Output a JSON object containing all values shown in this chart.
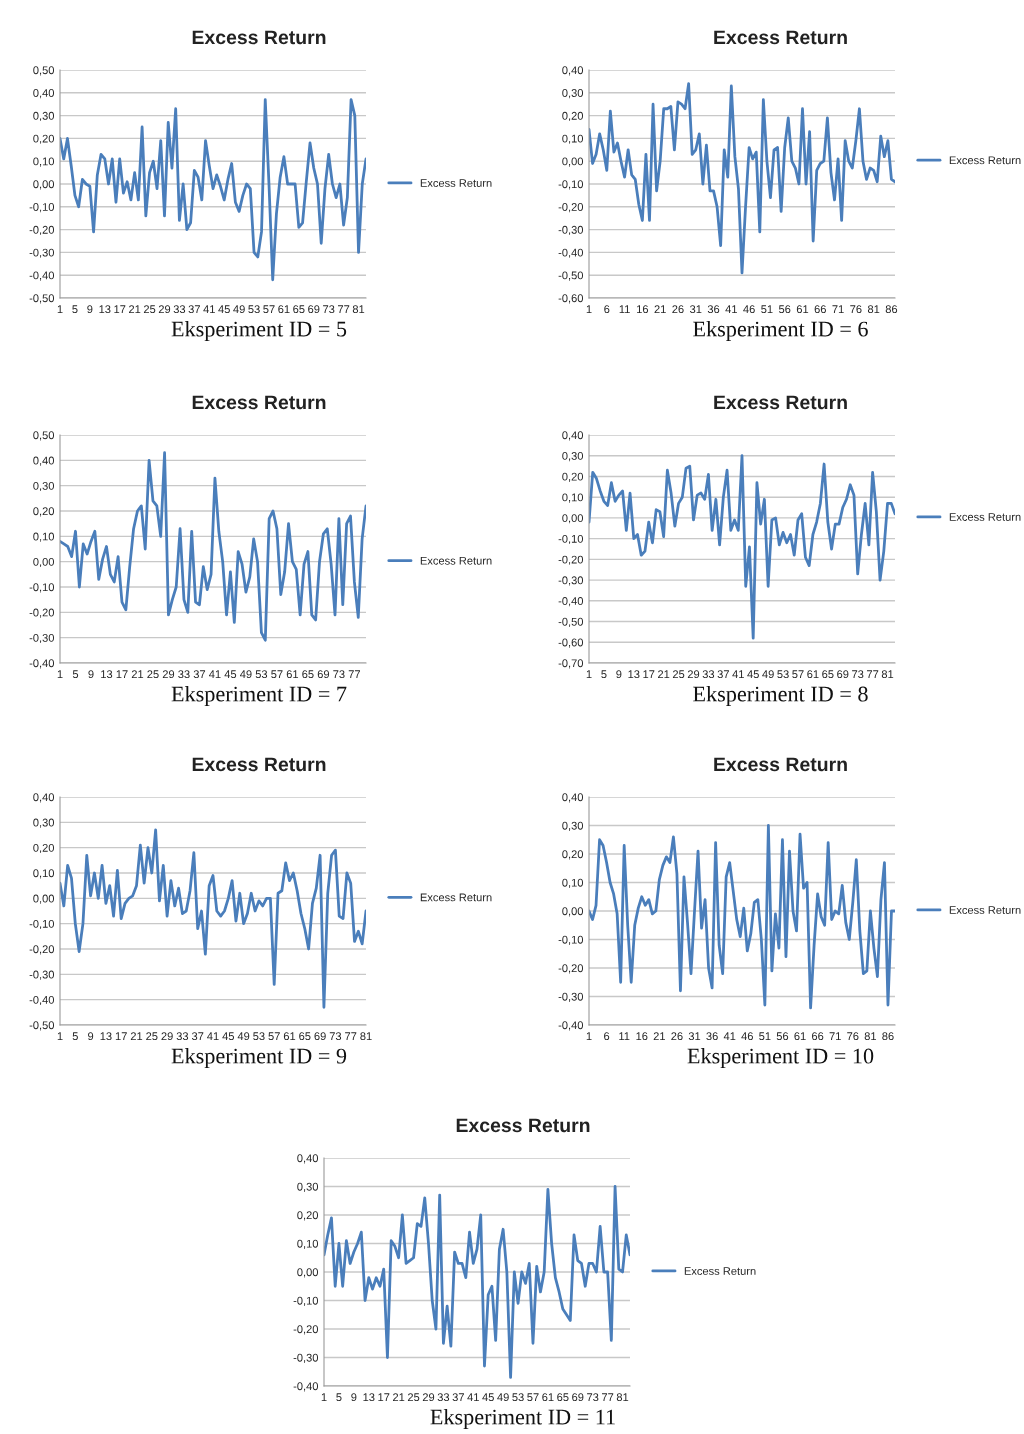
{
  "chart_data": [
    {
      "type": "line",
      "title": "Excess Return",
      "annotations": [
        "Eksperiment ID = 5"
      ],
      "grid": "y",
      "legend": "right",
      "categories": [
        "1",
        null,
        null,
        null,
        "5",
        null,
        null,
        null,
        "9",
        null,
        null,
        null,
        "13",
        null,
        null,
        null,
        "17",
        null,
        null,
        null,
        "21",
        null,
        null,
        null,
        "25",
        null,
        null,
        null,
        "29",
        null,
        null,
        null,
        "33",
        null,
        null,
        null,
        "37",
        null,
        null,
        null,
        "41",
        null,
        null,
        null,
        "45",
        null,
        null,
        null,
        "49",
        null,
        null,
        null,
        "53",
        null,
        null,
        null,
        "57",
        null,
        null,
        null,
        "61",
        null,
        null,
        null,
        "65",
        null,
        null,
        null,
        "69",
        null,
        null,
        null,
        "73",
        null,
        null,
        null,
        "77",
        null,
        null,
        null,
        "81",
        null,
        null
      ],
      "ylim": [
        -0.5,
        0.5
      ],
      "yticks": [
        {
          "value": -0.5,
          "label": "-0,50"
        },
        {
          "value": -0.4,
          "label": "-0,40"
        },
        {
          "value": -0.3,
          "label": "-0,30"
        },
        {
          "value": -0.2,
          "label": "-0,20"
        },
        {
          "value": -0.1,
          "label": "-0,10"
        },
        {
          "value": 0,
          "label": "0,00"
        },
        {
          "value": 0.1,
          "label": "0,10"
        },
        {
          "value": 0.2,
          "label": "0,20"
        },
        {
          "value": 0.3,
          "label": "0,30"
        },
        {
          "value": 0.4,
          "label": "0,40"
        },
        {
          "value": 0.5,
          "label": "0,50"
        }
      ],
      "series": [
        {
          "name": "Excess Return",
          "color": "#4a7ebb",
          "values": [
            0.2,
            0.11,
            0.2,
            0.08,
            -0.05,
            -0.1,
            0.02,
            0.0,
            -0.01,
            -0.21,
            0.04,
            0.13,
            0.11,
            0.0,
            0.11,
            -0.08,
            0.11,
            -0.04,
            0.01,
            -0.07,
            0.05,
            -0.07,
            0.25,
            -0.14,
            0.05,
            0.1,
            -0.02,
            0.19,
            -0.14,
            0.27,
            0.07,
            0.33,
            -0.16,
            0.0,
            -0.2,
            -0.17,
            0.06,
            0.03,
            -0.07,
            0.19,
            0.08,
            -0.02,
            0.04,
            -0.01,
            -0.07,
            0.02,
            0.09,
            -0.08,
            -0.12,
            -0.05,
            0.0,
            -0.02,
            -0.3,
            -0.32,
            -0.21,
            0.37,
            0.0,
            -0.42,
            -0.13,
            0.03,
            0.12,
            0.0,
            0.0,
            0.0,
            -0.19,
            -0.17,
            0.01,
            0.18,
            0.07,
            0.0,
            -0.26,
            -0.02,
            0.13,
            0.0,
            -0.06,
            0.0,
            -0.18,
            -0.06,
            0.37,
            0.3,
            -0.3,
            0.0,
            0.11
          ]
        }
      ]
    },
    {
      "type": "line",
      "title": "Excess Return",
      "annotations": [
        "Eksperiment ID = 6"
      ],
      "grid": "y",
      "legend": "right",
      "categories": [
        "1",
        null,
        null,
        null,
        null,
        "6",
        null,
        null,
        null,
        null,
        "11",
        null,
        null,
        null,
        null,
        "16",
        null,
        null,
        null,
        null,
        "21",
        null,
        null,
        null,
        null,
        "26",
        null,
        null,
        null,
        null,
        "31",
        null,
        null,
        null,
        null,
        "36",
        null,
        null,
        null,
        null,
        "41",
        null,
        null,
        null,
        null,
        "46",
        null,
        null,
        null,
        null,
        "51",
        null,
        null,
        null,
        null,
        "56",
        null,
        null,
        null,
        null,
        "61",
        null,
        null,
        null,
        null,
        "66",
        null,
        null,
        null,
        null,
        "71",
        null,
        null,
        null,
        null,
        "76",
        null,
        null,
        null,
        null,
        "81",
        null,
        null,
        null,
        null,
        "86",
        null
      ],
      "ylim": [
        -0.6,
        0.4
      ],
      "yticks": [
        {
          "value": -0.6,
          "label": "-0,60"
        },
        {
          "value": -0.5,
          "label": "-0,50"
        },
        {
          "value": -0.4,
          "label": "-0,40"
        },
        {
          "value": -0.3,
          "label": "-0,30"
        },
        {
          "value": -0.2,
          "label": "-0,20"
        },
        {
          "value": -0.1,
          "label": "-0,10"
        },
        {
          "value": 0,
          "label": "0,00"
        },
        {
          "value": 0.1,
          "label": "0,10"
        },
        {
          "value": 0.2,
          "label": "0,20"
        },
        {
          "value": 0.3,
          "label": "0,30"
        },
        {
          "value": 0.4,
          "label": "0,40"
        }
      ],
      "series": [
        {
          "name": "Excess Return",
          "color": "#4a7ebb",
          "values": [
            0.14,
            -0.01,
            0.03,
            0.12,
            0.05,
            -0.04,
            0.22,
            0.04,
            0.08,
            0.0,
            -0.07,
            0.05,
            -0.06,
            -0.08,
            -0.19,
            -0.26,
            0.03,
            -0.26,
            0.25,
            -0.13,
            0.0,
            0.23,
            0.23,
            0.24,
            0.05,
            0.26,
            0.25,
            0.23,
            0.34,
            0.03,
            0.05,
            0.12,
            -0.1,
            0.07,
            -0.13,
            -0.13,
            -0.2,
            -0.37,
            0.05,
            -0.07,
            0.33,
            0.02,
            -0.12,
            -0.49,
            -0.2,
            0.06,
            0.01,
            0.04,
            -0.31,
            0.27,
            0.0,
            -0.16,
            0.05,
            0.06,
            -0.22,
            0.06,
            0.19,
            0.0,
            -0.03,
            -0.1,
            0.23,
            -0.1,
            0.13,
            -0.35,
            -0.04,
            -0.01,
            0.0,
            0.19,
            -0.05,
            -0.17,
            0.01,
            -0.26,
            0.09,
            0.0,
            -0.03,
            0.09,
            0.23,
            0.0,
            -0.08,
            -0.03,
            -0.04,
            -0.09,
            0.11,
            0.02,
            0.09,
            -0.08,
            -0.09
          ]
        }
      ]
    },
    {
      "type": "line",
      "title": "Excess Return",
      "annotations": [
        "Eksperiment ID = 7"
      ],
      "grid": "y",
      "legend": "right",
      "categories": [
        "1",
        null,
        null,
        null,
        "5",
        null,
        null,
        null,
        "9",
        null,
        null,
        null,
        "13",
        null,
        null,
        null,
        "17",
        null,
        null,
        null,
        "21",
        null,
        null,
        null,
        "25",
        null,
        null,
        null,
        "29",
        null,
        null,
        null,
        "33",
        null,
        null,
        null,
        "37",
        null,
        null,
        null,
        "41",
        null,
        null,
        null,
        "45",
        null,
        null,
        null,
        "49",
        null,
        null,
        null,
        "53",
        null,
        null,
        null,
        "57",
        null,
        null,
        null,
        "61",
        null,
        null,
        null,
        "65",
        null,
        null,
        null,
        "69",
        null,
        null,
        null,
        "73",
        null,
        null,
        null,
        "77",
        null,
        null,
        null
      ],
      "ylim": [
        -0.4,
        0.5
      ],
      "yticks": [
        {
          "value": -0.4,
          "label": "-0,40"
        },
        {
          "value": -0.3,
          "label": "-0,30"
        },
        {
          "value": -0.2,
          "label": "-0,20"
        },
        {
          "value": -0.1,
          "label": "-0,10"
        },
        {
          "value": 0,
          "label": "0,00"
        },
        {
          "value": 0.1,
          "label": "0,10"
        },
        {
          "value": 0.2,
          "label": "0,20"
        },
        {
          "value": 0.3,
          "label": "0,30"
        },
        {
          "value": 0.4,
          "label": "0,40"
        },
        {
          "value": 0.5,
          "label": "0,50"
        }
      ],
      "series": [
        {
          "name": "Excess Return",
          "color": "#4a7ebb",
          "values": [
            0.08,
            0.07,
            0.06,
            0.02,
            0.12,
            -0.1,
            0.07,
            0.03,
            0.08,
            0.12,
            -0.07,
            0.01,
            0.06,
            -0.05,
            -0.08,
            0.02,
            -0.16,
            -0.19,
            -0.02,
            0.13,
            0.2,
            0.22,
            0.05,
            0.4,
            0.24,
            0.22,
            0.1,
            0.43,
            -0.21,
            -0.15,
            -0.1,
            0.13,
            -0.15,
            -0.2,
            0.12,
            -0.16,
            -0.17,
            -0.02,
            -0.11,
            -0.05,
            0.33,
            0.12,
            0.0,
            -0.21,
            -0.04,
            -0.24,
            0.04,
            -0.01,
            -0.12,
            -0.06,
            0.09,
            0.0,
            -0.28,
            -0.31,
            0.17,
            0.2,
            0.13,
            -0.13,
            -0.04,
            0.15,
            0.0,
            -0.03,
            -0.21,
            -0.01,
            0.04,
            -0.21,
            -0.23,
            0.0,
            0.11,
            0.13,
            -0.01,
            -0.21,
            0.17,
            -0.17,
            0.15,
            0.18,
            -0.08,
            -0.22,
            0.09,
            0.22
          ]
        }
      ]
    },
    {
      "type": "line",
      "title": "Excess Return",
      "annotations": [
        "Eksperiment ID = 8"
      ],
      "grid": "y",
      "legend": "right",
      "categories": [
        "1",
        null,
        null,
        null,
        "5",
        null,
        null,
        null,
        "9",
        null,
        null,
        null,
        "13",
        null,
        null,
        null,
        "17",
        null,
        null,
        null,
        "21",
        null,
        null,
        null,
        "25",
        null,
        null,
        null,
        "29",
        null,
        null,
        null,
        "33",
        null,
        null,
        null,
        "37",
        null,
        null,
        null,
        "41",
        null,
        null,
        null,
        "45",
        null,
        null,
        null,
        "49",
        null,
        null,
        null,
        "53",
        null,
        null,
        null,
        "57",
        null,
        null,
        null,
        "61",
        null,
        null,
        null,
        "65",
        null,
        null,
        null,
        "69",
        null,
        null,
        null,
        "73",
        null,
        null,
        null,
        "77",
        null,
        null,
        null,
        "81",
        null,
        null
      ],
      "ylim": [
        -0.7,
        0.4
      ],
      "yticks": [
        {
          "value": -0.7,
          "label": "-0,70"
        },
        {
          "value": -0.6,
          "label": "-0,60"
        },
        {
          "value": -0.5,
          "label": "-0,50"
        },
        {
          "value": -0.4,
          "label": "-0,40"
        },
        {
          "value": -0.3,
          "label": "-0,30"
        },
        {
          "value": -0.2,
          "label": "-0,20"
        },
        {
          "value": -0.1,
          "label": "-0,10"
        },
        {
          "value": 0,
          "label": "0,00"
        },
        {
          "value": 0.1,
          "label": "0,10"
        },
        {
          "value": 0.2,
          "label": "0,20"
        },
        {
          "value": 0.3,
          "label": "0,30"
        },
        {
          "value": 0.4,
          "label": "0,40"
        }
      ],
      "series": [
        {
          "name": "Excess Return",
          "color": "#4a7ebb",
          "values": [
            -0.02,
            0.22,
            0.19,
            0.13,
            0.08,
            0.06,
            0.17,
            0.08,
            0.11,
            0.13,
            -0.06,
            0.12,
            -0.1,
            -0.08,
            -0.18,
            -0.16,
            -0.02,
            -0.12,
            0.04,
            0.03,
            -0.09,
            0.23,
            0.12,
            -0.04,
            0.07,
            0.1,
            0.24,
            0.25,
            -0.01,
            0.11,
            0.12,
            0.09,
            0.21,
            -0.06,
            0.09,
            -0.13,
            0.1,
            0.23,
            -0.06,
            -0.01,
            -0.06,
            0.3,
            -0.33,
            -0.14,
            -0.58,
            0.17,
            -0.03,
            0.09,
            -0.33,
            -0.01,
            0.0,
            -0.13,
            -0.07,
            -0.12,
            -0.08,
            -0.18,
            -0.01,
            0.02,
            -0.19,
            -0.23,
            -0.08,
            -0.02,
            0.07,
            0.26,
            -0.02,
            -0.15,
            -0.03,
            -0.03,
            0.05,
            0.09,
            0.16,
            0.11,
            -0.27,
            -0.08,
            0.07,
            -0.13,
            0.22,
            0.03,
            -0.3,
            -0.16,
            0.07,
            0.07,
            0.02
          ]
        }
      ]
    },
    {
      "type": "line",
      "title": "Excess Return",
      "annotations": [
        "Eksperiment ID = 9"
      ],
      "grid": "y",
      "legend": "right",
      "categories": [
        "1",
        null,
        null,
        null,
        "5",
        null,
        null,
        null,
        "9",
        null,
        null,
        null,
        "13",
        null,
        null,
        null,
        "17",
        null,
        null,
        null,
        "21",
        null,
        null,
        null,
        "25",
        null,
        null,
        null,
        "29",
        null,
        null,
        null,
        "33",
        null,
        null,
        null,
        "37",
        null,
        null,
        null,
        "41",
        null,
        null,
        null,
        "45",
        null,
        null,
        null,
        "49",
        null,
        null,
        null,
        "53",
        null,
        null,
        null,
        "57",
        null,
        null,
        null,
        "61",
        null,
        null,
        null,
        "65",
        null,
        null,
        null,
        "69",
        null,
        null,
        null,
        "73",
        null,
        null,
        null,
        "77",
        null,
        null,
        null,
        "81"
      ],
      "ylim": [
        -0.5,
        0.4
      ],
      "yticks": [
        {
          "value": -0.5,
          "label": "-0,50"
        },
        {
          "value": -0.4,
          "label": "-0,40"
        },
        {
          "value": -0.3,
          "label": "-0,30"
        },
        {
          "value": -0.2,
          "label": "-0,20"
        },
        {
          "value": -0.1,
          "label": "-0,10"
        },
        {
          "value": 0,
          "label": "0,00"
        },
        {
          "value": 0.1,
          "label": "0,10"
        },
        {
          "value": 0.2,
          "label": "0,20"
        },
        {
          "value": 0.3,
          "label": "0,30"
        },
        {
          "value": 0.4,
          "label": "0,40"
        }
      ],
      "series": [
        {
          "name": "Excess Return",
          "color": "#4a7ebb",
          "values": [
            0.06,
            -0.03,
            0.13,
            0.08,
            -0.1,
            -0.21,
            -0.1,
            0.17,
            0.01,
            0.1,
            0.0,
            0.13,
            -0.02,
            0.05,
            -0.07,
            0.11,
            -0.08,
            -0.02,
            0.0,
            0.01,
            0.05,
            0.21,
            0.06,
            0.2,
            0.1,
            0.27,
            -0.01,
            0.13,
            -0.07,
            0.07,
            -0.03,
            0.04,
            -0.06,
            -0.05,
            0.03,
            0.18,
            -0.12,
            -0.05,
            -0.22,
            0.05,
            0.09,
            -0.05,
            -0.07,
            -0.05,
            0.0,
            0.07,
            -0.09,
            0.02,
            -0.1,
            -0.06,
            0.02,
            -0.05,
            -0.01,
            -0.03,
            0.0,
            0.0,
            -0.34,
            0.02,
            0.03,
            0.14,
            0.07,
            0.1,
            0.03,
            -0.06,
            -0.12,
            -0.2,
            -0.02,
            0.04,
            0.17,
            -0.43,
            0.02,
            0.17,
            0.19,
            -0.07,
            -0.08,
            0.1,
            0.06,
            -0.17,
            -0.13,
            -0.18,
            -0.05
          ]
        }
      ]
    },
    {
      "type": "line",
      "title": "Excess Return",
      "annotations": [
        "Eksperiment ID = 10"
      ],
      "grid": "y",
      "legend": "right",
      "categories": [
        "1",
        null,
        null,
        null,
        null,
        "6",
        null,
        null,
        null,
        null,
        "11",
        null,
        null,
        null,
        null,
        "16",
        null,
        null,
        null,
        null,
        "21",
        null,
        null,
        null,
        null,
        "26",
        null,
        null,
        null,
        null,
        "31",
        null,
        null,
        null,
        null,
        "36",
        null,
        null,
        null,
        null,
        "41",
        null,
        null,
        null,
        null,
        "46",
        null,
        null,
        null,
        null,
        "51",
        null,
        null,
        null,
        null,
        "56",
        null,
        null,
        null,
        null,
        "61",
        null,
        null,
        null,
        null,
        "66",
        null,
        null,
        null,
        null,
        "71",
        null,
        null,
        null,
        null,
        "76",
        null,
        null,
        null,
        null,
        "81",
        null,
        null,
        null,
        null,
        "86",
        null,
        null
      ],
      "ylim": [
        -0.4,
        0.4
      ],
      "yticks": [
        {
          "value": -0.4,
          "label": "-0,40"
        },
        {
          "value": -0.3,
          "label": "-0,30"
        },
        {
          "value": -0.2,
          "label": "-0,20"
        },
        {
          "value": -0.1,
          "label": "-0,10"
        },
        {
          "value": 0,
          "label": "0,00"
        },
        {
          "value": 0.1,
          "label": "0,10"
        },
        {
          "value": 0.2,
          "label": "0,20"
        },
        {
          "value": 0.3,
          "label": "0,30"
        },
        {
          "value": 0.4,
          "label": "0,40"
        }
      ],
      "series": [
        {
          "name": "Excess Return",
          "color": "#4a7ebb",
          "values": [
            0.0,
            -0.03,
            0.02,
            0.25,
            0.23,
            0.17,
            0.1,
            0.06,
            -0.01,
            -0.25,
            0.23,
            -0.05,
            -0.25,
            -0.05,
            0.01,
            0.05,
            0.02,
            0.04,
            -0.01,
            0.0,
            0.11,
            0.16,
            0.19,
            0.17,
            0.26,
            0.13,
            -0.28,
            0.12,
            -0.04,
            -0.22,
            0.0,
            0.21,
            -0.06,
            0.04,
            -0.2,
            -0.27,
            0.24,
            -0.12,
            -0.22,
            0.12,
            0.17,
            0.07,
            -0.03,
            -0.09,
            0.01,
            -0.14,
            -0.08,
            0.03,
            0.04,
            -0.1,
            -0.33,
            0.3,
            -0.21,
            -0.01,
            -0.13,
            0.25,
            -0.16,
            0.21,
            0.0,
            -0.07,
            0.27,
            0.08,
            0.1,
            -0.34,
            -0.12,
            0.06,
            -0.02,
            -0.05,
            0.24,
            -0.03,
            0.0,
            -0.01,
            0.09,
            -0.04,
            -0.1,
            0.03,
            0.18,
            -0.07,
            -0.22,
            -0.21,
            0.0,
            -0.13,
            -0.23,
            0.04,
            0.17,
            -0.33,
            0.0,
            0.0
          ]
        }
      ]
    },
    {
      "type": "line",
      "title": "Excess Return",
      "annotations": [
        "Eksperiment ID = 11"
      ],
      "grid": "y",
      "legend": "right",
      "categories": [
        "1",
        null,
        null,
        null,
        "5",
        null,
        null,
        null,
        "9",
        null,
        null,
        null,
        "13",
        null,
        null,
        null,
        "17",
        null,
        null,
        null,
        "21",
        null,
        null,
        null,
        "25",
        null,
        null,
        null,
        "29",
        null,
        null,
        null,
        "33",
        null,
        null,
        null,
        "37",
        null,
        null,
        null,
        "41",
        null,
        null,
        null,
        "45",
        null,
        null,
        null,
        "49",
        null,
        null,
        null,
        "53",
        null,
        null,
        null,
        "57",
        null,
        null,
        null,
        "61",
        null,
        null,
        null,
        "65",
        null,
        null,
        null,
        "69",
        null,
        null,
        null,
        "73",
        null,
        null,
        null,
        "77",
        null,
        null,
        null,
        "81",
        null,
        null
      ],
      "ylim": [
        -0.4,
        0.4
      ],
      "yticks": [
        {
          "value": -0.4,
          "label": "-0,40"
        },
        {
          "value": -0.3,
          "label": "-0,30"
        },
        {
          "value": -0.2,
          "label": "-0,20"
        },
        {
          "value": -0.1,
          "label": "-0,10"
        },
        {
          "value": 0,
          "label": "0,00"
        },
        {
          "value": 0.1,
          "label": "0,10"
        },
        {
          "value": 0.2,
          "label": "0,20"
        },
        {
          "value": 0.3,
          "label": "0,30"
        },
        {
          "value": 0.4,
          "label": "0,40"
        }
      ],
      "series": [
        {
          "name": "Excess Return",
          "color": "#4a7ebb",
          "values": [
            0.06,
            0.13,
            0.19,
            -0.05,
            0.1,
            -0.05,
            0.11,
            0.03,
            0.07,
            0.1,
            0.14,
            -0.1,
            -0.02,
            -0.06,
            -0.02,
            -0.05,
            0.01,
            -0.3,
            0.11,
            0.09,
            0.05,
            0.2,
            0.03,
            0.04,
            0.05,
            0.17,
            0.16,
            0.26,
            0.1,
            -0.1,
            -0.2,
            0.27,
            -0.25,
            -0.12,
            -0.26,
            0.07,
            0.03,
            0.03,
            -0.02,
            0.14,
            0.03,
            0.08,
            0.2,
            -0.33,
            -0.08,
            -0.05,
            -0.24,
            0.08,
            0.15,
            0.0,
            -0.37,
            0.0,
            -0.11,
            0.0,
            -0.04,
            0.03,
            -0.25,
            0.02,
            -0.07,
            0.0,
            0.29,
            0.1,
            -0.02,
            -0.07,
            -0.13,
            -0.15,
            -0.17,
            0.13,
            0.04,
            0.03,
            -0.05,
            0.03,
            0.03,
            0.0,
            0.16,
            0.0,
            0.0,
            -0.24,
            0.3,
            0.01,
            0.0,
            0.13,
            0.06
          ]
        }
      ]
    }
  ]
}
